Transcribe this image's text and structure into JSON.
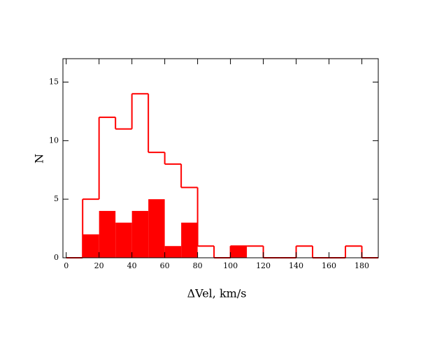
{
  "chart_data": {
    "type": "histogram",
    "xlabel": "ΔVel,  km/s",
    "ylabel": "N",
    "bins": [
      0,
      10,
      20,
      30,
      40,
      50,
      60,
      70,
      80,
      90,
      100,
      110,
      120,
      130,
      140,
      150,
      160,
      170,
      180,
      190
    ],
    "series": [
      {
        "style": "outline",
        "color": "#ff0000",
        "values": [
          0,
          5,
          12,
          11,
          14,
          9,
          8,
          6,
          1,
          0,
          1,
          1,
          0,
          0,
          1,
          0,
          0,
          1,
          0
        ]
      },
      {
        "style": "filled",
        "color": "#ff0000",
        "values": [
          0,
          2,
          4,
          3,
          4,
          5,
          1,
          3,
          0,
          0,
          1,
          0,
          0,
          0,
          0,
          0,
          0,
          0,
          0
        ]
      }
    ],
    "xlim": [
      -2,
      190
    ],
    "ylim": [
      0,
      17
    ],
    "xticks": [
      0,
      20,
      40,
      60,
      80,
      100,
      120,
      140,
      160,
      180
    ],
    "yticks": [
      0,
      5,
      10,
      15
    ]
  }
}
